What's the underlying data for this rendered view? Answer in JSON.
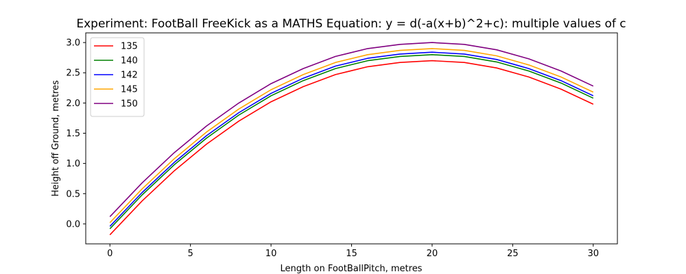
{
  "chart_data": {
    "type": "line",
    "title": "Experiment: FootBall FreeKick as a MATHS Equation: y = d(-a(x+b)^2+c): multiple values of c",
    "xlabel": "Length on FootBallPitch, metres",
    "ylabel": "Height off Ground, metres",
    "xlim": [
      -1.5,
      31.5
    ],
    "ylim": [
      -0.33,
      3.16
    ],
    "xticks": [
      0,
      5,
      10,
      15,
      20,
      25,
      30
    ],
    "xtick_labels": [
      "0",
      "5",
      "10",
      "15",
      "20",
      "25",
      "30"
    ],
    "yticks": [
      0.0,
      0.5,
      1.0,
      1.5,
      2.0,
      2.5,
      3.0
    ],
    "ytick_labels": [
      "0.0",
      "0.5",
      "1.0",
      "1.5",
      "2.0",
      "2.5",
      "3.0"
    ],
    "legend_position": "upper-left",
    "grid": false,
    "x": [
      0,
      2,
      4,
      6,
      8,
      10,
      12,
      14,
      16,
      18,
      20,
      22,
      24,
      26,
      28,
      30
    ],
    "series": [
      {
        "name": "135",
        "color": "#ff0000",
        "values": [
          -0.18,
          0.38,
          0.88,
          1.32,
          1.7,
          2.02,
          2.27,
          2.47,
          2.6,
          2.67,
          2.7,
          2.67,
          2.58,
          2.43,
          2.23,
          1.98
        ]
      },
      {
        "name": "140",
        "color": "#008000",
        "values": [
          -0.08,
          0.48,
          0.98,
          1.42,
          1.8,
          2.12,
          2.37,
          2.57,
          2.7,
          2.77,
          2.8,
          2.77,
          2.68,
          2.53,
          2.33,
          2.08
        ]
      },
      {
        "name": "142",
        "color": "#0000ff",
        "values": [
          -0.04,
          0.52,
          1.02,
          1.46,
          1.84,
          2.16,
          2.41,
          2.61,
          2.74,
          2.81,
          2.84,
          2.81,
          2.72,
          2.57,
          2.37,
          2.12
        ]
      },
      {
        "name": "145",
        "color": "#ffa500",
        "values": [
          0.02,
          0.58,
          1.08,
          1.52,
          1.9,
          2.22,
          2.47,
          2.67,
          2.8,
          2.87,
          2.9,
          2.87,
          2.78,
          2.63,
          2.43,
          2.18
        ]
      },
      {
        "name": "150",
        "color": "#800080",
        "values": [
          0.12,
          0.68,
          1.18,
          1.62,
          2.0,
          2.32,
          2.57,
          2.77,
          2.9,
          2.97,
          3.0,
          2.97,
          2.88,
          2.73,
          2.53,
          2.28
        ]
      }
    ]
  }
}
